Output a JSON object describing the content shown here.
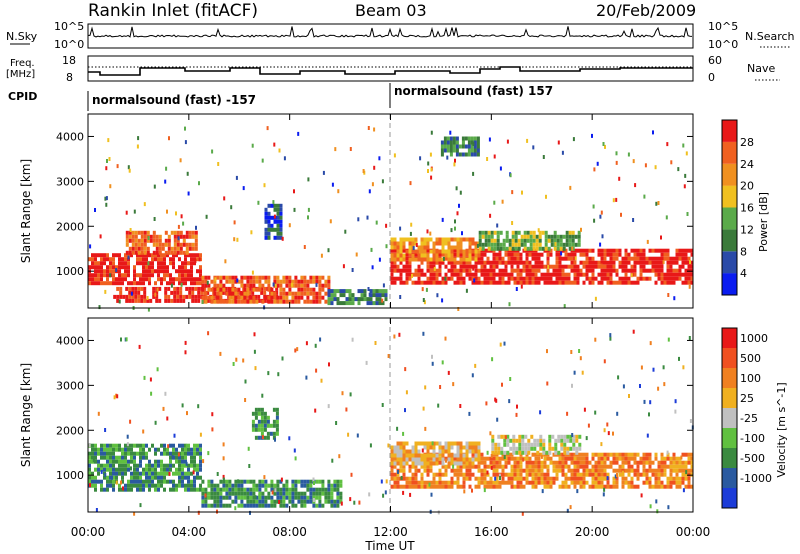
{
  "header": {
    "station": "Rankin Inlet (fitACF)",
    "beam": "Beam 03",
    "date": "20/Feb/2009"
  },
  "panels": {
    "nsky": {
      "label": "N.Sky",
      "right_label": "N.Search",
      "ticks_left": [
        "10^5",
        "10^0"
      ],
      "ticks_right": [
        "10^5",
        "10^0"
      ]
    },
    "freq": {
      "label_line1": "Freq.",
      "label_line2": "[MHz]",
      "right_label": "Nave",
      "ticks_left": [
        "8",
        "18"
      ],
      "ticks_right": [
        "60",
        "0"
      ]
    },
    "cpid": {
      "label": "CPID",
      "segments": [
        "normalsound (fast) -157",
        "normalsound (fast) 157"
      ]
    }
  },
  "chart_data": [
    {
      "type": "heatmap",
      "title": "",
      "xlabel": "Time UT",
      "ylabel": "Slant Range [km]",
      "xlim": [
        "00:00",
        "24:00"
      ],
      "ylim": [
        180,
        4500
      ],
      "x_ticks": [
        "00:00",
        "04:00",
        "08:00",
        "12:00",
        "16:00",
        "20:00",
        "00:00"
      ],
      "y_ticks": [
        1000,
        2000,
        3000,
        4000
      ],
      "colorbar": {
        "label": "Power [dB]",
        "ticks": [
          "4",
          "8",
          "12",
          "16",
          "20",
          "24",
          "28"
        ],
        "colors": [
          "#0a1cf0",
          "#2a4aa8",
          "#3a7a3a",
          "#5aaa4a",
          "#f0c020",
          "#f09020",
          "#f06020",
          "#e81818"
        ]
      },
      "bands": [
        {
          "t0": 0.0,
          "t1": 4.5,
          "r0": 700,
          "r1": 1400,
          "level": 7
        },
        {
          "t0": 1.5,
          "t1": 4.3,
          "r0": 1400,
          "r1": 1900,
          "level": 6
        },
        {
          "t0": 1.0,
          "t1": 7.5,
          "r0": 300,
          "r1": 650,
          "level": 7
        },
        {
          "t0": 4.5,
          "t1": 9.5,
          "r0": 300,
          "r1": 900,
          "level": 6
        },
        {
          "t0": 9.5,
          "t1": 11.8,
          "r0": 300,
          "r1": 600,
          "level": 2
        },
        {
          "t0": 12.0,
          "t1": 24.0,
          "r0": 700,
          "r1": 1500,
          "level": 7
        },
        {
          "t0": 12.0,
          "t1": 15.5,
          "r0": 1300,
          "r1": 1750,
          "level": 5
        },
        {
          "t0": 15.5,
          "t1": 19.5,
          "r0": 1500,
          "r1": 1900,
          "level": 3
        },
        {
          "t0": 7.0,
          "t1": 7.6,
          "r0": 1700,
          "r1": 2500,
          "level": 1
        },
        {
          "t0": 14.0,
          "t1": 15.5,
          "r0": 3600,
          "r1": 4000,
          "level": 2
        }
      ]
    },
    {
      "type": "heatmap",
      "title": "",
      "xlabel": "Time UT",
      "ylabel": "Slant Range [km]",
      "xlim": [
        "00:00",
        "24:00"
      ],
      "ylim": [
        180,
        4500
      ],
      "x_ticks": [
        "00:00",
        "04:00",
        "08:00",
        "12:00",
        "16:00",
        "20:00",
        "00:00"
      ],
      "y_ticks": [
        1000,
        2000,
        3000,
        4000
      ],
      "colorbar": {
        "label": "Velocity [m s^-1]",
        "ticks": [
          "1000",
          "500",
          "100",
          "25",
          "-25",
          "-100",
          "-500",
          "-1000"
        ],
        "colors": [
          "#1c3cd8",
          "#2a5aa0",
          "#3a8a40",
          "#60c040",
          "#c0c0c0",
          "#f0b020",
          "#f08020",
          "#f05020",
          "#e81818"
        ]
      },
      "bands": [
        {
          "t0": 0.0,
          "t1": 4.5,
          "r0": 700,
          "r1": 1700,
          "level": 2
        },
        {
          "t0": 4.5,
          "t1": 10.0,
          "r0": 300,
          "r1": 900,
          "level": 2
        },
        {
          "t0": 12.0,
          "t1": 24.0,
          "r0": 700,
          "r1": 1500,
          "level": 6
        },
        {
          "t0": 16.0,
          "t1": 19.5,
          "r0": 1500,
          "r1": 1900,
          "level": 4
        },
        {
          "t0": 12.0,
          "t1": 15.5,
          "r0": 1300,
          "r1": 1750,
          "level": 5
        },
        {
          "t0": 6.5,
          "t1": 7.5,
          "r0": 1800,
          "r1": 2500,
          "level": 2
        }
      ]
    }
  ]
}
